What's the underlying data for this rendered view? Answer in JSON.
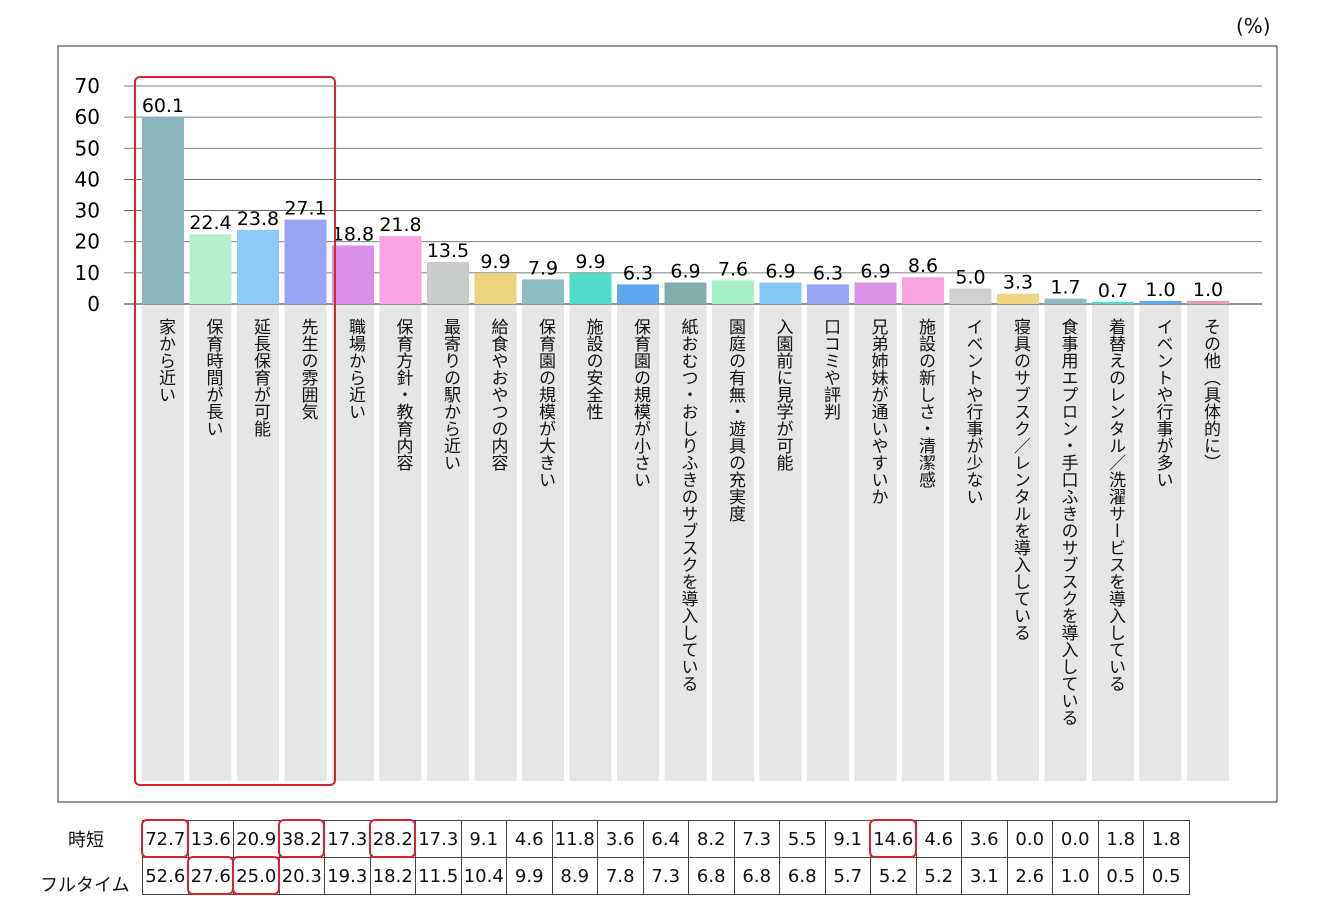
{
  "chart_data": {
    "type": "bar",
    "unit_label": "(%)",
    "ylim": [
      0,
      70
    ],
    "yticks": [
      "0",
      "10",
      "20",
      "30",
      "40",
      "50",
      "60",
      "70"
    ],
    "grid": true,
    "categories": [
      "家から近い",
      "保育時間が長い",
      "延長保育が可能",
      "先生の雰囲気",
      "職場から近い",
      "保育方針・教育内容",
      "最寄りの駅から近い",
      "給食やおやつの内容",
      "保育園の規模が大きい",
      "施設の安全性",
      "保育園の規模が小さい",
      "紙おむつ・おしりふきのサブスクを導入している",
      "園庭の有無・遊具の充実度",
      "入園前に見学が可能",
      "口コミや評判",
      "兄弟姉妹が通いやすいか",
      "施設の新しさ・清潔感",
      "イベントや行事が少ない",
      "寝具のサブスク／レンタルを導入している",
      "食事用エプロン・手口ふきのサブスクを導入している",
      "着替えのレンタル／洗濯サービスを導入している",
      "イベントや行事が多い",
      "その他（具体的に）"
    ],
    "values": [
      60.1,
      22.4,
      23.8,
      27.1,
      18.8,
      21.8,
      13.5,
      9.9,
      7.9,
      9.9,
      6.3,
      6.9,
      7.6,
      6.9,
      6.3,
      6.9,
      8.6,
      5.0,
      3.3,
      1.7,
      0.7,
      1.0,
      1.0
    ],
    "labels": [
      "60.1",
      "22.4",
      "23.8",
      "27.1",
      "18.8",
      "21.8",
      "13.5",
      "9.9",
      "7.9",
      "9.9",
      "6.3",
      "6.9",
      "7.6",
      "6.9",
      "6.3",
      "6.9",
      "8.6",
      "5.0",
      "3.3",
      "1.7",
      "0.7",
      "1.0",
      "1.0"
    ],
    "colors": [
      "#8ab5bd",
      "#b5f0cb",
      "#8ecbf7",
      "#99a4f6",
      "#d990e6",
      "#f7a4e2",
      "#c6cbc9",
      "#eed37e",
      "#8fbdc3",
      "#4fddc9",
      "#5fa8f0",
      "#83aeae",
      "#a6f1c7",
      "#84c6f6",
      "#9aa4f6",
      "#d993e6",
      "#f6a4de",
      "#cfd2cf",
      "#eed684",
      "#8fbdc3",
      "#4fddc9",
      "#5fa8f0",
      "#e0a0ad"
    ],
    "highlight": "#d9232e",
    "table": {
      "rows": [
        {
          "label": "時短",
          "values": [
            "72.7",
            "13.6",
            "20.9",
            "38.2",
            "17.3",
            "28.2",
            "17.3",
            "9.1",
            "4.6",
            "11.8",
            "3.6",
            "6.4",
            "8.2",
            "7.3",
            "5.5",
            "9.1",
            "14.6",
            "4.6",
            "3.6",
            "0.0",
            "0.0",
            "1.8",
            "1.8"
          ]
        },
        {
          "label": "フルタイム",
          "values": [
            "52.6",
            "27.6",
            "25.0",
            "20.3",
            "19.3",
            "18.2",
            "11.5",
            "10.4",
            "9.9",
            "8.9",
            "7.8",
            "7.3",
            "6.8",
            "6.8",
            "6.8",
            "5.7",
            "5.2",
            "5.2",
            "3.1",
            "2.6",
            "1.0",
            "0.5",
            "0.5"
          ]
        }
      ],
      "highlighted": {
        "時短": [
          0,
          3,
          5,
          16
        ],
        "フルタイム": [
          1,
          2
        ]
      }
    }
  }
}
